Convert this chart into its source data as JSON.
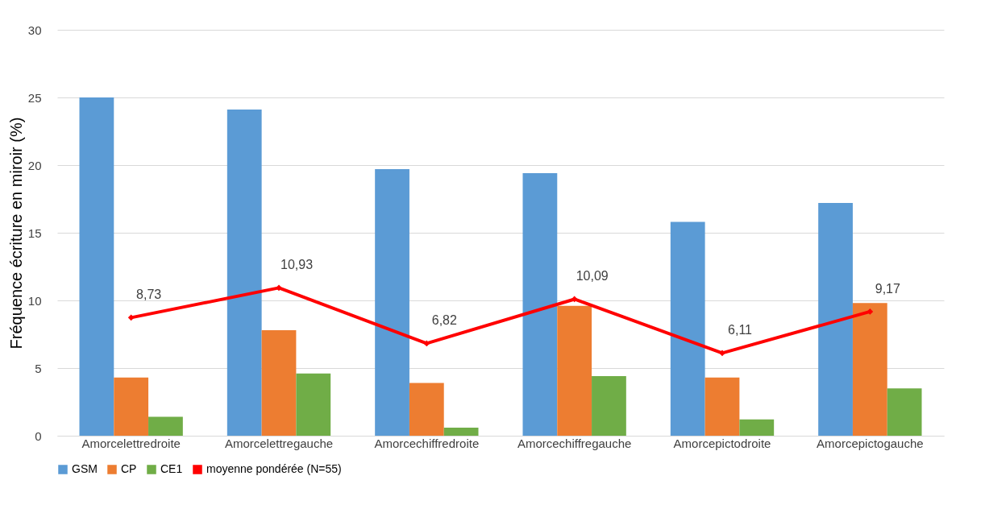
{
  "chart_data": {
    "type": "bar",
    "ylabel": "Fréquence écriture en miroir (%)",
    "categories": [
      "Amorcelettredroite",
      "Amorcelettregauche",
      "Amorcechiffredroite",
      "Amorcechiffregauche",
      "Amorcepictodroite",
      "Amorcepictogauche"
    ],
    "series": [
      {
        "name": "GSM",
        "color": "#5b9bd5",
        "values": [
          25.0,
          24.1,
          19.7,
          19.4,
          15.8,
          17.2
        ]
      },
      {
        "name": "CP",
        "color": "#ed7d31",
        "values": [
          4.3,
          7.8,
          3.9,
          9.6,
          4.3,
          9.8
        ]
      },
      {
        "name": "CE1",
        "color": "#70ad47",
        "values": [
          1.4,
          4.6,
          0.6,
          4.4,
          1.2,
          3.5
        ]
      },
      {
        "name": "moyenne pondérée (N=55)",
        "type": "line",
        "color": "#ff0000",
        "marker": "diamond",
        "line_style": "solid",
        "values": [
          8.73,
          10.93,
          6.82,
          10.09,
          6.11,
          9.17
        ],
        "value_labels": [
          "8,73",
          "10,93",
          "6,82",
          "10,09",
          "6,11",
          "9,17"
        ]
      }
    ],
    "ylim": [
      0,
      30
    ],
    "yticks": [
      0,
      5,
      10,
      15,
      20,
      25,
      30
    ],
    "grid": "y",
    "legend": "bottom"
  }
}
